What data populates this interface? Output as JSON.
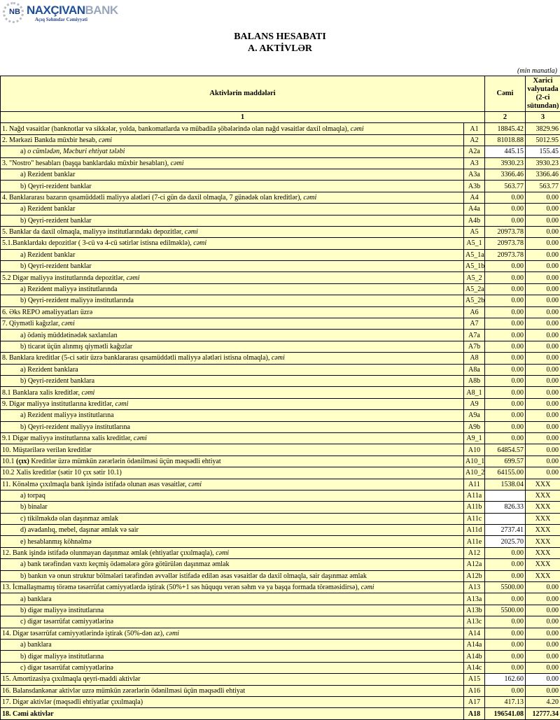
{
  "logo": {
    "name_part1": "NAXÇIVAN",
    "name_part2": "BANK",
    "subtitle": "Açıq Səhmdar Cəmiyyəti",
    "mark": "NB"
  },
  "title": "BALANS HESABATI",
  "subtitle": "A. AKTİVLƏR",
  "unit": "(min manatla)",
  "header": {
    "col1": "Aktivlərin   maddələri",
    "col2": "Cəmi",
    "col3": "Xarici valyutada (2-ci sütundan)",
    "num1": "1",
    "num2": "2",
    "num3": "3"
  },
  "colors": {
    "cell_bg": "#ffffc8",
    "input_bg": "#ffffff",
    "logo_blue": "#1d4f9a"
  },
  "rows": [
    {
      "text": "1. Nağd vəsaitlər (banknotlar və sikkələr, yolda, bankomatlarda və mübadilə şöbələrində olan nağd vəsaitlər daxil olmaqla), ",
      "italic": "cəmi",
      "code": "A1",
      "total": "18845.42",
      "foreign": "3829.96"
    },
    {
      "text": "2. Mərkəzi Bankda müxbir hesab, ",
      "italic": "cəmi",
      "code": "A2",
      "total": "81018.88",
      "foreign": "5012.95"
    },
    {
      "text": "a) ",
      "italic": "o cümlədən, Məcburi ehtiyat tələbi",
      "code": "A2a",
      "total": "445.15",
      "foreign": "155.45",
      "indent": true,
      "white_total": true,
      "white_foreign": true
    },
    {
      "text": "3. \"Nostro\" hesabları (başqa banklardakı müxbir hesabları), ",
      "italic": "cəmi",
      "code": "A3",
      "total": "3930.23",
      "foreign": "3930.23"
    },
    {
      "text": "a) Rezident banklar",
      "code": "A3a",
      "total": "3366.46",
      "foreign": "3366.46",
      "indent": true
    },
    {
      "text": "b) Qeyri-rezident banklar",
      "code": "A3b",
      "total": "563.77",
      "foreign": "563.77",
      "indent": true
    },
    {
      "text": "4. Banklararası bazarın qısamüddətli maliyyə alətləri (7-ci gün də daxil olmaqla, 7 günədək olan kreditlər), ",
      "italic": "cəmi",
      "code": "A4",
      "total": "0.00",
      "foreign": "0.00"
    },
    {
      "text": "a) Rezident banklar",
      "code": "A4a",
      "total": "0.00",
      "foreign": "0.00",
      "indent": true
    },
    {
      "text": "b) Qeyri-rezident banklar",
      "code": "A4b",
      "total": "0.00",
      "foreign": "0.00",
      "indent": true
    },
    {
      "text": "5. Banklar da daxil olmaqla, maliyyə institutlarındakı depozitlər, ",
      "italic": "cəmi",
      "code": "A5",
      "total": "20973.78",
      "foreign": "0.00"
    },
    {
      "text": "5.1.Banklardakı depozitlər ( 3-cü və 4-cü sətirlər istisna edilməklə), ",
      "italic": "cəmi",
      "code": "A5_1",
      "total": "20973.78",
      "foreign": "0.00"
    },
    {
      "text": "a) Rezident banklar",
      "code": "A5_1a",
      "total": "20973.78",
      "foreign": "0.00",
      "indent": true
    },
    {
      "text": "b) Qeyri-rezident banklar",
      "code": "A5_1b",
      "total": "0.00",
      "foreign": "0.00",
      "indent": true
    },
    {
      "text": "5.2 Digər maliyyə institutlarında depozitlər, ",
      "italic": "cəmi",
      "code": "A5_2",
      "total": "0.00",
      "foreign": "0.00"
    },
    {
      "text": "a) Rezident maliyyə institutlarında",
      "code": "A5_2a",
      "total": "0.00",
      "foreign": "0.00",
      "indent": true
    },
    {
      "text": "b) Qeyri-rezident maliyyə institutlarında",
      "code": "A5_2b",
      "total": "0.00",
      "foreign": "0.00",
      "indent": true
    },
    {
      "text": "6. Əks REPO əməliyyatları üzrə",
      "code": "A6",
      "total": "0.00",
      "foreign": "0.00"
    },
    {
      "text": "7. Qiymətli kağızlar, ",
      "italic": "cəmi",
      "code": "A7",
      "total": "0.00",
      "foreign": "0.00"
    },
    {
      "text": "a) ödəniş müddətinədək saxlanılan",
      "code": "A7a",
      "total": "0.00",
      "foreign": "0.00",
      "indent": true
    },
    {
      "text": "b) ticarət üçün alınmış qiymətli kağızlar",
      "code": "A7b",
      "total": "0.00",
      "foreign": "0.00",
      "indent": true
    },
    {
      "text": "8. Banklara kreditlər (5-ci sətir üzrə banklararası qısamüddətli maliyyə alətləri istisna olmaqla), ",
      "italic": "cəmi",
      "code": "A8",
      "total": "0.00",
      "foreign": "0.00"
    },
    {
      "text": "a) Rezident banklara",
      "code": "A8a",
      "total": "0.00",
      "foreign": "0.00",
      "indent": true
    },
    {
      "text": "b) Qeyri-rezident banklara",
      "code": "A8b",
      "total": "0.00",
      "foreign": "0.00",
      "indent": true
    },
    {
      "text": "8.1 Banklara xalis kreditlər, ",
      "italic": "cəmi",
      "code": "A8_1",
      "total": "0.00",
      "foreign": "0.00"
    },
    {
      "text": "9. Digər maliyyə institutlarına kreditlər, ",
      "italic": "cəmi",
      "code": "A9",
      "total": "0.00",
      "foreign": "0.00"
    },
    {
      "text": "a) Rezident maliyyə institutlarına",
      "code": "A9a",
      "total": "0.00",
      "foreign": "0.00",
      "indent": true
    },
    {
      "text": "b) Qeyri-rezident maliyyə institutlarına",
      "code": "A9b",
      "total": "0.00",
      "foreign": "0.00",
      "indent": true
    },
    {
      "text": "9.1 Digər maliyyə institutlarına xalis kreditlər, ",
      "italic": "cəmi",
      "code": "A9_1",
      "total": "0.00",
      "foreign": "0.00"
    },
    {
      "text": "10. Müştərilərə verilən kreditlər",
      "code": "A10",
      "total": "64854.57",
      "foreign": "0.00"
    },
    {
      "text": "10.1 ",
      "bold": "(çıx)",
      "text2": " Kreditlər üzrə mümkün zərərlərin ödənilməsi üçün məqsədli ehtiyat",
      "code": "A10_1",
      "total": "699.57",
      "foreign": "0.00"
    },
    {
      "text": "10.2 Xalis kreditlər (sətir 10 çıx sətir 10.1)",
      "code": "A10_2",
      "total": "64155.00",
      "foreign": "0.00"
    },
    {
      "text": "11. Könəlmə çıxılmaqla bank işində istifadə olunan əsas vəsaitlər, ",
      "italic": "cəmi",
      "code": "A11",
      "total": "1538.04",
      "foreign": "XXX",
      "center_foreign": true
    },
    {
      "text": "a) torpaq",
      "code": "A11a",
      "total": "",
      "foreign": "XXX",
      "indent": true,
      "white_total": true,
      "center_foreign": true
    },
    {
      "text": "b) binalar",
      "code": "A11b",
      "total": "826.33",
      "foreign": "XXX",
      "indent": true,
      "white_total": true,
      "center_foreign": true
    },
    {
      "text": "c) tikilməkdə olan daşınmaz əmlak",
      "code": "A11c",
      "total": "",
      "foreign": "XXX",
      "indent": true,
      "white_total": true,
      "center_foreign": true
    },
    {
      "text": "d) avadanlıq, mebel, daşınar əmlak və sair",
      "code": "A11d",
      "total": "2737.41",
      "foreign": "XXX",
      "indent": true,
      "white_total": true,
      "center_foreign": true
    },
    {
      "text": "e) hesablanmış köhnəlmə",
      "code": "A11e",
      "total": "2025.70",
      "foreign": "XXX",
      "indent": true,
      "white_total": true,
      "center_foreign": true
    },
    {
      "text": "12. Bank işində istifadə olunmayan daşınmaz əmlak (ehtiyatlar çıxılmaqla), ",
      "italic": "cəmi",
      "code": "A12",
      "total": "0.00",
      "foreign": "XXX",
      "center_foreign": true
    },
    {
      "text": "a) bank tərəfindən vaxtı keçmiş ödəmələrə görə götürülən daşınmaz əmlak",
      "code": "A12a",
      "total": "0.00",
      "foreign": "XXX",
      "indent": true,
      "center_foreign": true
    },
    {
      "text": "b) bankın və onun struktur bölmələri tərəfindən əvvəllər istifadə edilən əsas vəsaitlər də daxil olmaqla, sair daşınmaz əmlak",
      "code": "A12b",
      "total": "0.00",
      "foreign": "XXX",
      "indent": true,
      "center_foreign": true
    },
    {
      "text": "13. İcmallaşmamış törəmə təsərrüfat cəmiyyətlərdə iştirak (50%+1 səs hüququ verən səhm və ya başqa formada törəməsidirsə), ",
      "italic": "cəmi",
      "code": "A13",
      "total": "5500.00",
      "foreign": "0.00"
    },
    {
      "text": "a) banklara",
      "code": "A13a",
      "total": "0.00",
      "foreign": "0.00",
      "indent": true
    },
    {
      "text": "b) digər maliyyə institutlarına",
      "code": "A13b",
      "total": "5500.00",
      "foreign": "0.00",
      "indent": true
    },
    {
      "text": "c) digər təsərrüfat cəmiyyətlərinə",
      "code": "A13c",
      "total": "0.00",
      "foreign": "0.00",
      "indent": true
    },
    {
      "text": "14. Digər təsərrüfat cəmiyyətlərində iştirak (50%-dən az), ",
      "italic": "cəmi",
      "code": "A14",
      "total": "0.00",
      "foreign": "0.00"
    },
    {
      "text": "a) banklara",
      "code": "A14a",
      "total": "0.00",
      "foreign": "0.00",
      "indent": true
    },
    {
      "text": "b) digər maliyyə institutlarına",
      "code": "A14b",
      "total": "0.00",
      "foreign": "0.00",
      "indent": true
    },
    {
      "text": "c) digər təsərrüfat cəmiyyətlərinə",
      "code": "A14c",
      "total": "0.00",
      "foreign": "0.00",
      "indent": true
    },
    {
      "text": "15. Amortizasiya çıxılmaqla qeyri-maddi aktivlər",
      "code": "A15",
      "total": "162.60",
      "foreign": "0.00",
      "white_total": true,
      "white_foreign": true
    },
    {
      "text": "16. Balansdankənar aktivlər uzrə mümkün zərərlərin ödənilməsi üçün məqsədli ehtiyat",
      "code": "A16",
      "total": "0.00",
      "foreign": "0.00"
    },
    {
      "text": "17. Digər aktivlər (məqsədli ehtiyatlar çıxılmaqla)",
      "code": "A17",
      "total": "417.13",
      "foreign": "4.20"
    },
    {
      "text": "18. Cəmi aktivlər",
      "code": "A18",
      "total": "196541.08",
      "foreign": "12777.34",
      "is_total": true
    }
  ]
}
